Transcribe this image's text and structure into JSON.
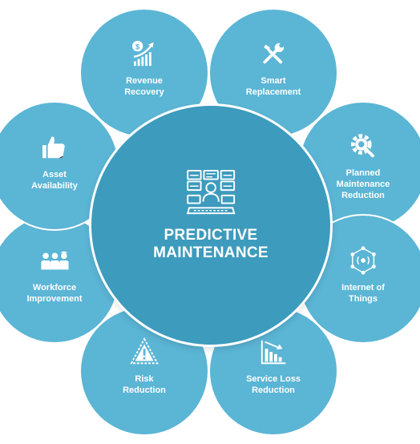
{
  "colors": {
    "petal": "#5bb5d5",
    "center": "#3d9bbd",
    "text": "#ffffff"
  },
  "center": {
    "label": "PREDICTIVE\nMAINTENANCE",
    "icon": "operator-workstation-icon"
  },
  "petals": [
    {
      "label": "Revenue\nRecovery",
      "icon": "revenue-growth-icon"
    },
    {
      "label": "Smart\nReplacement",
      "icon": "wrench-screwdriver-icon"
    },
    {
      "label": "Planned\nMaintenance\nReduction",
      "icon": "gear-wrench-icon"
    },
    {
      "label": "Internet of\nThings",
      "icon": "iot-network-icon"
    },
    {
      "label": "Service Loss\nReduction",
      "icon": "declining-chart-icon"
    },
    {
      "label": "Risk\nReduction",
      "icon": "warning-triangle-icon"
    },
    {
      "label": "Workforce\nImprovement",
      "icon": "team-icon"
    },
    {
      "label": "Asset\nAvailability",
      "icon": "thumbs-up-icon"
    }
  ]
}
